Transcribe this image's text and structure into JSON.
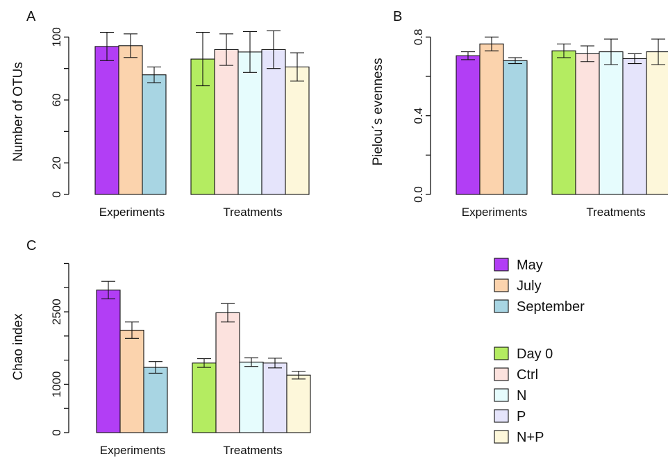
{
  "panels": [
    {
      "id": "A",
      "letter": "A",
      "ylabel": "Number of OTUs",
      "ylim": [
        0,
        105
      ],
      "yticks": [
        0,
        20,
        40,
        60,
        80,
        100
      ],
      "ytick_labels": [
        "0",
        "20",
        "",
        "60",
        "",
        "100"
      ],
      "groups": [
        {
          "label": "Experiments",
          "bars": [
            {
              "series": "May",
              "value": 94,
              "err": 9
            },
            {
              "series": "July",
              "value": 94.5,
              "err": 7.5
            },
            {
              "series": "September",
              "value": 76,
              "err": 5
            }
          ]
        },
        {
          "label": "Treatments",
          "bars": [
            {
              "series": "Day 0",
              "value": 86,
              "err": 17
            },
            {
              "series": "Ctrl",
              "value": 92,
              "err": 10
            },
            {
              "series": "N",
              "value": 90.5,
              "err": 13
            },
            {
              "series": "P",
              "value": 92,
              "err": 12
            },
            {
              "series": "N+P",
              "value": 81,
              "err": 9
            }
          ]
        }
      ]
    },
    {
      "id": "B",
      "letter": "B",
      "ylabel": "Pielou´s evenness",
      "ylim": [
        0,
        0.84
      ],
      "yticks": [
        0.0,
        0.2,
        0.4,
        0.6,
        0.8
      ],
      "ytick_labels": [
        "0.0",
        "",
        "0.4",
        "",
        "0.8"
      ],
      "groups": [
        {
          "label": "Experiments",
          "bars": [
            {
              "series": "May",
              "value": 0.705,
              "err": 0.02
            },
            {
              "series": "July",
              "value": 0.765,
              "err": 0.035
            },
            {
              "series": "September",
              "value": 0.68,
              "err": 0.015
            }
          ]
        },
        {
          "label": "Treatments",
          "bars": [
            {
              "series": "Day 0",
              "value": 0.73,
              "err": 0.035
            },
            {
              "series": "Ctrl",
              "value": 0.715,
              "err": 0.04
            },
            {
              "series": "N",
              "value": 0.725,
              "err": 0.065
            },
            {
              "series": "P",
              "value": 0.69,
              "err": 0.025
            },
            {
              "series": "N+P",
              "value": 0.725,
              "err": 0.065
            }
          ]
        }
      ]
    },
    {
      "id": "C",
      "letter": "C",
      "ylabel": "Chao index",
      "ylim": [
        0,
        3550
      ],
      "yticks": [
        0,
        500,
        1000,
        1500,
        2000,
        2500,
        3000,
        3500
      ],
      "ytick_labels": [
        "0",
        "",
        "1000",
        "",
        "",
        "2500",
        "",
        ""
      ],
      "groups": [
        {
          "label": "Experiments",
          "bars": [
            {
              "series": "May",
              "value": 2950,
              "err": 180
            },
            {
              "series": "July",
              "value": 2120,
              "err": 170
            },
            {
              "series": "September",
              "value": 1350,
              "err": 120
            }
          ]
        },
        {
          "label": "Treatments",
          "bars": [
            {
              "series": "Day 0",
              "value": 1440,
              "err": 90
            },
            {
              "series": "Ctrl",
              "value": 2480,
              "err": 190
            },
            {
              "series": "N",
              "value": 1460,
              "err": 90
            },
            {
              "series": "P",
              "value": 1440,
              "err": 100
            },
            {
              "series": "N+P",
              "value": 1190,
              "err": 80
            }
          ]
        }
      ]
    }
  ],
  "legend": {
    "experiments": [
      {
        "name": "May",
        "color": "#b23ef5"
      },
      {
        "name": "July",
        "color": "#fbd3ad"
      },
      {
        "name": "September",
        "color": "#a8d5e3"
      }
    ],
    "treatments": [
      {
        "name": "Day 0",
        "color": "#b4ec61"
      },
      {
        "name": "Ctrl",
        "color": "#fce2de"
      },
      {
        "name": "N",
        "color": "#e6fcfd"
      },
      {
        "name": "P",
        "color": "#e5e4fb"
      },
      {
        "name": "N+P",
        "color": "#fdf7da"
      }
    ]
  },
  "chart_data": [
    {
      "type": "bar",
      "panel": "A",
      "ylabel": "Number of OTUs",
      "xlabel": "",
      "categories": [
        "Experiments",
        "Treatments"
      ],
      "ylim": [
        0,
        105
      ],
      "series": [
        {
          "name": "May",
          "values": [
            94,
            null
          ]
        },
        {
          "name": "July",
          "values": [
            94.5,
            null
          ]
        },
        {
          "name": "September",
          "values": [
            76,
            null
          ]
        },
        {
          "name": "Day 0",
          "values": [
            null,
            86
          ]
        },
        {
          "name": "Ctrl",
          "values": [
            null,
            92
          ]
        },
        {
          "name": "N",
          "values": [
            null,
            90.5
          ]
        },
        {
          "name": "P",
          "values": [
            null,
            92
          ]
        },
        {
          "name": "N+P",
          "values": [
            null,
            81
          ]
        }
      ],
      "error_bars": true
    },
    {
      "type": "bar",
      "panel": "B",
      "ylabel": "Pielou´s evenness",
      "xlabel": "",
      "categories": [
        "Experiments",
        "Treatments"
      ],
      "ylim": [
        0,
        0.84
      ],
      "series": [
        {
          "name": "May",
          "values": [
            0.705,
            null
          ]
        },
        {
          "name": "July",
          "values": [
            0.765,
            null
          ]
        },
        {
          "name": "September",
          "values": [
            0.68,
            null
          ]
        },
        {
          "name": "Day 0",
          "values": [
            null,
            0.73
          ]
        },
        {
          "name": "Ctrl",
          "values": [
            null,
            0.715
          ]
        },
        {
          "name": "N",
          "values": [
            null,
            0.725
          ]
        },
        {
          "name": "P",
          "values": [
            null,
            0.69
          ]
        },
        {
          "name": "N+P",
          "values": [
            null,
            0.725
          ]
        }
      ],
      "error_bars": true
    },
    {
      "type": "bar",
      "panel": "C",
      "ylabel": "Chao index",
      "xlabel": "",
      "categories": [
        "Experiments",
        "Treatments"
      ],
      "ylim": [
        0,
        3550
      ],
      "series": [
        {
          "name": "May",
          "values": [
            2950,
            null
          ]
        },
        {
          "name": "July",
          "values": [
            2120,
            null
          ]
        },
        {
          "name": "September",
          "values": [
            1350,
            null
          ]
        },
        {
          "name": "Day 0",
          "values": [
            null,
            1440
          ]
        },
        {
          "name": "Ctrl",
          "values": [
            null,
            2480
          ]
        },
        {
          "name": "N",
          "values": [
            null,
            1460
          ]
        },
        {
          "name": "P",
          "values": [
            null,
            1440
          ]
        },
        {
          "name": "N+P",
          "values": [
            null,
            1190
          ]
        }
      ],
      "error_bars": true
    }
  ]
}
